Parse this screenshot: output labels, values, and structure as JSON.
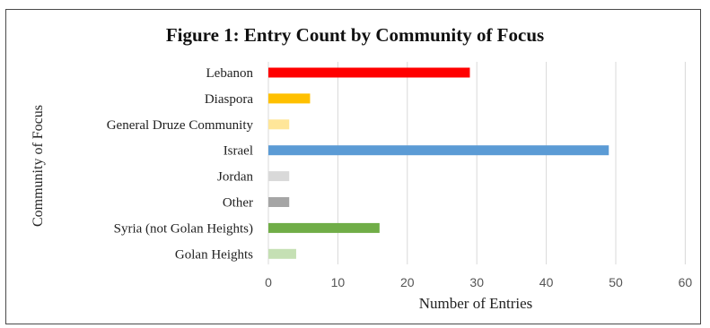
{
  "chart_data": {
    "type": "bar",
    "orientation": "horizontal",
    "title": "Figure 1: Entry Count by Community of Focus",
    "xlabel": "Number of Entries",
    "ylabel": "Community of Focus",
    "xlim": [
      0,
      60
    ],
    "xticks": [
      0,
      10,
      20,
      30,
      40,
      50,
      60
    ],
    "grid": true,
    "legend": "none",
    "categories": [
      "Lebanon",
      "Diaspora",
      "General Druze Community",
      "Israel",
      "Jordan",
      "Other",
      "Syria (not Golan Heights)",
      "Golan Heights"
    ],
    "values": [
      29,
      6,
      3,
      49,
      3,
      3,
      16,
      4
    ],
    "colors": [
      "#ff0000",
      "#ffc000",
      "#ffe699",
      "#5b9bd5",
      "#d9d9d9",
      "#a5a5a5",
      "#70ad47",
      "#c5e0b4"
    ]
  }
}
